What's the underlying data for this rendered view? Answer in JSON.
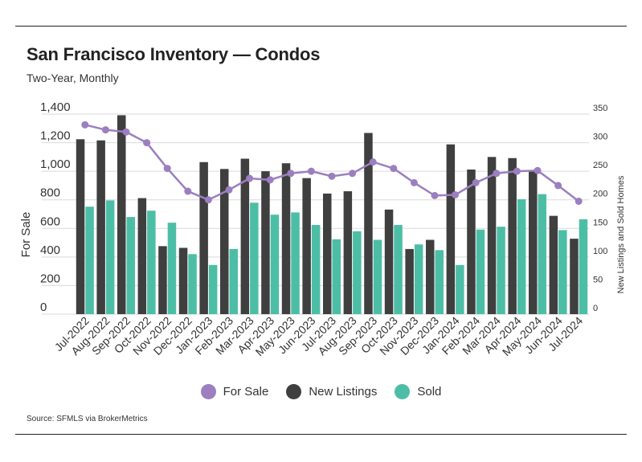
{
  "title": "San Francisco Inventory — Condos",
  "subtitle": "Two-Year, Monthly",
  "source": "Source:  SFMLS via BrokerMetrics",
  "colors": {
    "for_sale": "#9b7fbf",
    "new_listings": "#3f3f3f",
    "sold": "#4dbea6",
    "grid": "#d9d9d9",
    "rule": "#222222"
  },
  "chart_data": {
    "type": "bar",
    "categories": [
      "Jul-2022",
      "Aug-2022",
      "Sep-2022",
      "Oct-2022",
      "Nov-2022",
      "Dec-2022",
      "Jan-2023",
      "Feb-2023",
      "Mar-2023",
      "Apr-2023",
      "May-2023",
      "Jun-2023",
      "Jul-2023",
      "Aug-2023",
      "Sep-2023",
      "Oct-2023",
      "Nov-2023",
      "Dec-2023",
      "Jan-2024",
      "Feb-2024",
      "Mar-2024",
      "Apr-2024",
      "May-2024",
      "Jun-2024",
      "Jul-2024"
    ],
    "y_left": {
      "label": "For Sale",
      "range": [
        0,
        1400
      ],
      "ticks": [
        "0",
        "200",
        "400",
        "600",
        "800",
        "1,000",
        "1,200",
        "1,400"
      ]
    },
    "y_right": {
      "label": "New Listings and Sold Homes",
      "range": [
        0,
        350
      ],
      "ticks": [
        "0",
        "50",
        "100",
        "150",
        "200",
        "250",
        "300",
        "350"
      ]
    },
    "series": [
      {
        "name": "For Sale",
        "type": "line",
        "axis": "left",
        "values": [
          1325,
          1290,
          1275,
          1200,
          1020,
          860,
          800,
          870,
          950,
          940,
          985,
          1000,
          965,
          985,
          1065,
          1020,
          920,
          830,
          835,
          920,
          985,
          1000,
          1005,
          900,
          790
        ]
      },
      {
        "name": "New Listings",
        "type": "bar",
        "axis": "right",
        "values": [
          306,
          304,
          348,
          203,
          119,
          116,
          266,
          254,
          272,
          250,
          264,
          238,
          211,
          215,
          317,
          183,
          114,
          130,
          297,
          253,
          275,
          273,
          251,
          172,
          132
        ]
      },
      {
        "name": "Sold",
        "type": "bar",
        "axis": "right",
        "values": [
          188,
          199,
          170,
          181,
          160,
          105,
          86,
          114,
          195,
          174,
          178,
          156,
          131,
          145,
          130,
          156,
          122,
          112,
          86,
          148,
          153,
          201,
          210,
          147,
          166
        ]
      }
    ],
    "grid": true,
    "legend": "bottom-center"
  }
}
